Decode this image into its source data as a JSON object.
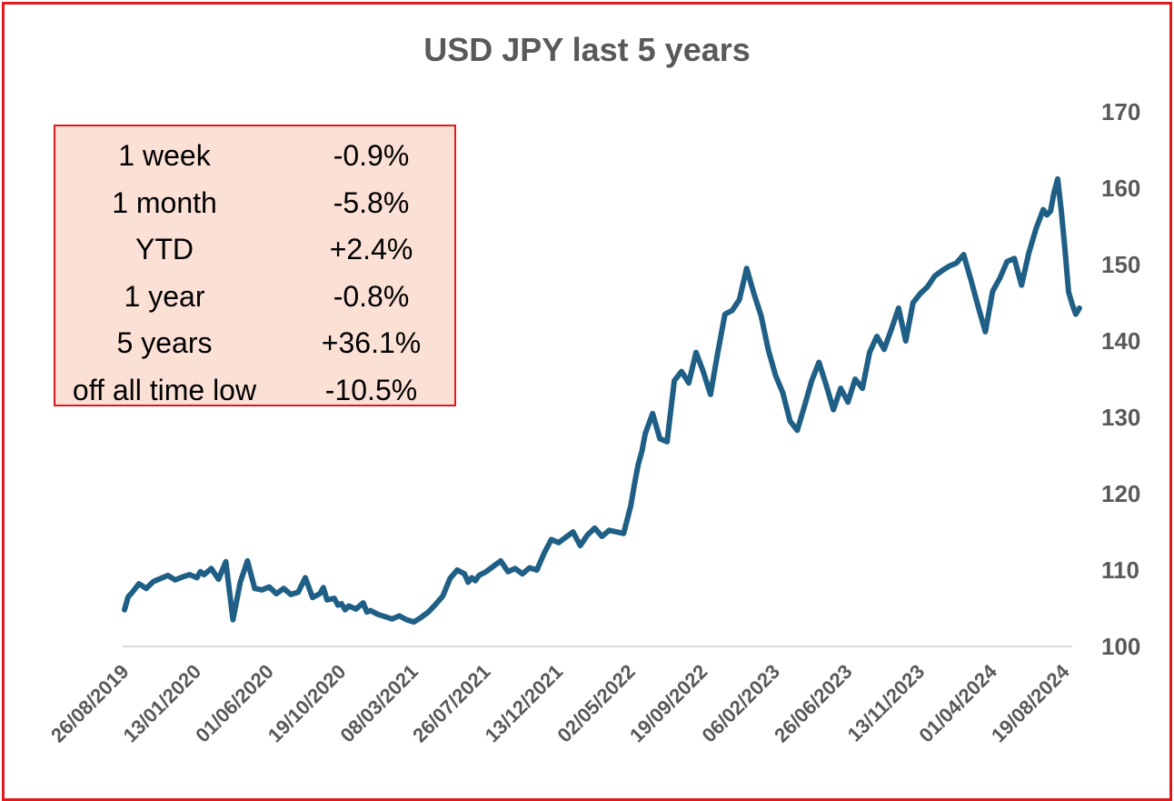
{
  "chart_data": {
    "type": "line",
    "title": "USD JPY last 5 years",
    "xlabel": "",
    "ylabel": "",
    "ylim": [
      100,
      170
    ],
    "yticks": [
      "100",
      "110",
      "120",
      "130",
      "140",
      "150",
      "160",
      "170"
    ],
    "x_tick_labels": [
      "26/08/2019",
      "13/01/2020",
      "01/06/2020",
      "19/10/2020",
      "08/03/2021",
      "26/07/2021",
      "13/12/2021",
      "02/05/2022",
      "19/09/2022",
      "06/02/2023",
      "26/06/2023",
      "13/11/2023",
      "01/04/2024",
      "19/08/2024"
    ],
    "grid": false,
    "legend": "none",
    "series": [
      {
        "name": "USD JPY",
        "color": "#1f5f86",
        "x": [
          0,
          0.05,
          0.1,
          0.2,
          0.3,
          0.4,
          0.5,
          0.6,
          0.7,
          0.8,
          0.9,
          1.0,
          1.05,
          1.1,
          1.2,
          1.3,
          1.4,
          1.5,
          1.6,
          1.7,
          1.8,
          1.9,
          2.0,
          2.1,
          2.2,
          2.3,
          2.4,
          2.5,
          2.6,
          2.7,
          2.75,
          2.8,
          2.9,
          2.95,
          3.0,
          3.05,
          3.1,
          3.2,
          3.3,
          3.35,
          3.4,
          3.5,
          3.6,
          3.7,
          3.8,
          3.9,
          4.0,
          4.1,
          4.2,
          4.3,
          4.4,
          4.5,
          4.6,
          4.7,
          4.75,
          4.8,
          4.85,
          4.9,
          5.0,
          5.1,
          5.2,
          5.3,
          5.4,
          5.5,
          5.6,
          5.7,
          5.8,
          5.9,
          6.0,
          6.1,
          6.2,
          6.3,
          6.4,
          6.5,
          6.6,
          6.7,
          6.8,
          6.9,
          7.0,
          7.05,
          7.1,
          7.15,
          7.2,
          7.3,
          7.4,
          7.5,
          7.6,
          7.7,
          7.8,
          7.9,
          8.0,
          8.1,
          8.2,
          8.3,
          8.4,
          8.5,
          8.6,
          8.7,
          8.8,
          8.9,
          9.0,
          9.1,
          9.2,
          9.3,
          9.4,
          9.5,
          9.6,
          9.7,
          9.8,
          9.9,
          10.0,
          10.1,
          10.2,
          10.3,
          10.4,
          10.5,
          10.6,
          10.7,
          10.8,
          10.9,
          11.0,
          11.1,
          11.2,
          11.3,
          11.4,
          11.5,
          11.6,
          11.7,
          11.8,
          11.9,
          12.0,
          12.1,
          12.2,
          12.3,
          12.4,
          12.5,
          12.6,
          12.7,
          12.75,
          12.8,
          12.85,
          12.9,
          12.95,
          13.0,
          13.05,
          13.1,
          13.15,
          13.2
        ],
        "values": [
          104.8,
          106.5,
          107.0,
          108.2,
          107.6,
          108.5,
          108.9,
          109.3,
          108.7,
          109.1,
          109.4,
          109.0,
          109.8,
          109.4,
          110.2,
          108.8,
          111.1,
          103.5,
          108.4,
          111.2,
          107.6,
          107.4,
          107.8,
          106.9,
          107.6,
          106.8,
          107.1,
          109.0,
          106.4,
          106.9,
          107.7,
          106.1,
          106.3,
          105.4,
          105.6,
          104.8,
          105.3,
          104.9,
          105.7,
          104.5,
          104.7,
          104.2,
          103.9,
          103.6,
          104.0,
          103.5,
          103.2,
          103.8,
          104.5,
          105.5,
          106.6,
          108.9,
          110.0,
          109.5,
          108.4,
          109.0,
          108.6,
          109.3,
          109.8,
          110.5,
          111.2,
          109.8,
          110.2,
          109.5,
          110.3,
          110.0,
          112.2,
          114.0,
          113.6,
          114.3,
          115.0,
          113.2,
          114.6,
          115.5,
          114.4,
          115.2,
          115.0,
          114.8,
          118.5,
          121.3,
          123.8,
          125.5,
          127.9,
          130.5,
          127.2,
          126.8,
          134.8,
          136.0,
          134.5,
          138.5,
          136.0,
          133.0,
          138.4,
          143.5,
          144.0,
          145.4,
          149.5,
          146.2,
          143.3,
          138.8,
          135.5,
          133.2,
          129.5,
          128.3,
          131.5,
          134.8,
          137.2,
          134.2,
          131.0,
          133.8,
          132.0,
          135.0,
          133.8,
          138.5,
          140.6,
          138.9,
          141.5,
          144.3,
          140.0,
          145.0,
          146.2,
          147.1,
          148.5,
          149.2,
          149.8,
          150.2,
          151.3,
          148.0,
          144.5,
          141.2,
          146.5,
          148.2,
          150.4,
          150.8,
          147.3,
          151.5,
          154.7,
          157.2,
          156.5,
          157.0,
          159.5,
          161.2,
          157.0,
          152.0,
          146.4,
          144.8,
          143.5,
          144.3
        ]
      }
    ]
  },
  "stats_table": {
    "rows": [
      {
        "label": "1 week",
        "value": "-0.9%"
      },
      {
        "label": "1 month",
        "value": "-5.8%"
      },
      {
        "label": "YTD",
        "value": "+2.4%"
      },
      {
        "label": "1 year",
        "value": "-0.8%"
      },
      {
        "label": "5 years",
        "value": "+36.1%"
      },
      {
        "label": "off all time low",
        "value": "-10.5%"
      }
    ]
  }
}
